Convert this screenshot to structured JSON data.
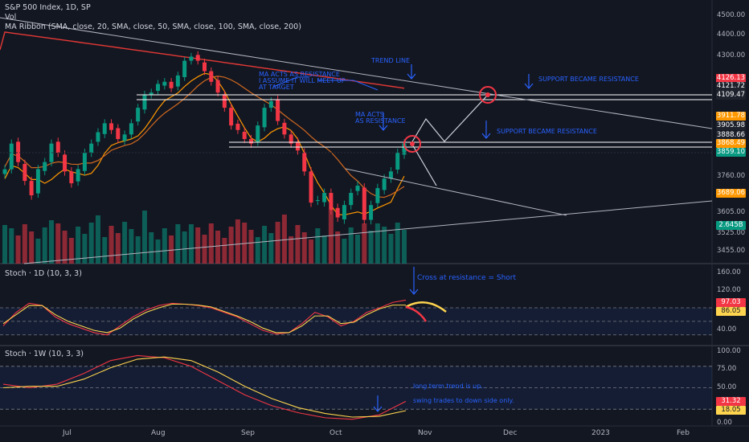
{
  "legend": {
    "title": "S&P 500 Index, 1D, SP",
    "vol": "Vol",
    "ribbon": "MA Ribbon (SMA, close, 20, SMA, close, 50, SMA, close, 100, SMA, close, 200)"
  },
  "panes": {
    "stoch_1d": "Stoch · 1D (10, 3, 3)",
    "stoch_1w": "Stoch · 1W (10, 3, 3)"
  },
  "price_axis": [
    "4500.00",
    "4400.00",
    "4300.00",
    "3760.00",
    "3605.00",
    "3525.00",
    "3455.00"
  ],
  "price_tags": [
    {
      "text": "4126.13",
      "color": "#f23645"
    },
    {
      "text": "4121.72",
      "color": "#1e222d"
    },
    {
      "text": "4109.47",
      "color": "#1e222d"
    },
    {
      "text": "3911.78",
      "color": "#ff9800"
    },
    {
      "text": "3905.98",
      "color": "#1e222d"
    },
    {
      "text": "3888.66",
      "color": "#1e222d"
    },
    {
      "text": "3868.49",
      "color": "#ff9800"
    },
    {
      "text": "3859.10",
      "color": "#089981"
    },
    {
      "text": "3689.06",
      "color": "#ff9800"
    },
    {
      "text": "2.645B",
      "color": "#089981"
    }
  ],
  "stoch1d_axis": [
    "160.00",
    "120.00",
    "40.00"
  ],
  "stoch1d_tags": [
    {
      "text": "97.03",
      "color": "#f23645"
    },
    {
      "text": "86.05",
      "color": "#ffd54f"
    }
  ],
  "stoch1w_axis": [
    "100.00",
    "75.00",
    "50.00",
    "0.00"
  ],
  "stoch1w_tags": [
    {
      "text": "31.32",
      "color": "#f23645"
    },
    {
      "text": "18.05",
      "color": "#ffd54f"
    }
  ],
  "time_axis": [
    "Jul",
    "Aug",
    "Sep",
    "Oct",
    "Nov",
    "Dec",
    "2023",
    "Feb"
  ],
  "annotations": {
    "trend_line": "TREND LINE",
    "ma_resistance": [
      "MA ACTS AS RESISTANCE",
      "I ASSUME IT WILL MEET UP",
      "AT TARGET"
    ],
    "ma_acts": [
      "MA ACTS",
      "AS RESISTANCE"
    ],
    "support_upper": "SUPPORT BECAME RESISTANCE",
    "support_lower": "SUPPORT BECAME RESISTANCE",
    "cross": "Cross at resistance = Short",
    "long_term": "long term trend is up..",
    "swing": "swing trades to down side only."
  },
  "colors": {
    "bg": "#131722",
    "up": "#089981",
    "down": "#f23645",
    "annot": "#2962ff",
    "ma20": "#ff9800",
    "ma50": "#d2691e",
    "ma100": "#c0392b",
    "ma200": "#e53935"
  },
  "chart_data": [
    {
      "type": "candlestick",
      "title": "S&P 500 Index, 1D, SP",
      "x_range": [
        "Jun 2022",
        "Feb 2023"
      ],
      "ylim": [
        3420,
        4530
      ],
      "y_scale": "log",
      "close": [
        3789,
        3900,
        3820,
        3740,
        3680,
        3790,
        3820,
        3900,
        3860,
        3780,
        3730,
        3790,
        3860,
        3900,
        3950,
        3990,
        3960,
        3920,
        3940,
        3990,
        4060,
        4120,
        4130,
        4170,
        4180,
        4150,
        4210,
        4280,
        4300,
        4280,
        4230,
        4180,
        4130,
        4060,
        3980,
        3960,
        3920,
        3900,
        3980,
        4060,
        4090,
        4000,
        3940,
        3900,
        3870,
        3780,
        3650,
        3660,
        3690,
        3620,
        3590,
        3640,
        3690,
        3720,
        3580,
        3640,
        3710,
        3750,
        3780,
        3860,
        3901
      ],
      "volume_last": "2.645B",
      "levels": [
        4126.13,
        4121.72,
        4109.47,
        3911.78,
        3905.98,
        3888.66,
        3868.49,
        3859.1,
        3689.06
      ]
    },
    {
      "type": "line",
      "title": "Stoch · 1D (10, 3, 3)",
      "ylim": [
        0,
        160
      ],
      "series": [
        {
          "name": "%K",
          "last": 97.03,
          "values": [
            40,
            70,
            90,
            85,
            60,
            45,
            35,
            25,
            20,
            40,
            60,
            75,
            85,
            90,
            88,
            85,
            80,
            70,
            60,
            45,
            30,
            22,
            25,
            45,
            70,
            60,
            40,
            50,
            70,
            80,
            92,
            97
          ]
        },
        {
          "name": "%D",
          "last": 86.05,
          "values": [
            45,
            65,
            85,
            85,
            65,
            50,
            40,
            30,
            25,
            35,
            55,
            70,
            80,
            88,
            88,
            86,
            82,
            72,
            62,
            50,
            35,
            25,
            25,
            40,
            62,
            62,
            45,
            48,
            65,
            78,
            86,
            86
          ]
        }
      ]
    },
    {
      "type": "line",
      "title": "Stoch · 1W (10, 3, 3)",
      "ylim": [
        0,
        100
      ],
      "series": [
        {
          "name": "%K",
          "last": 31.32,
          "values": [
            55,
            50,
            55,
            70,
            88,
            95,
            92,
            80,
            60,
            40,
            25,
            15,
            8,
            6,
            12,
            31
          ]
        },
        {
          "name": "%D",
          "last": 18.05,
          "values": [
            50,
            52,
            52,
            62,
            78,
            90,
            93,
            88,
            72,
            52,
            35,
            22,
            14,
            9,
            10,
            18
          ]
        }
      ]
    }
  ]
}
